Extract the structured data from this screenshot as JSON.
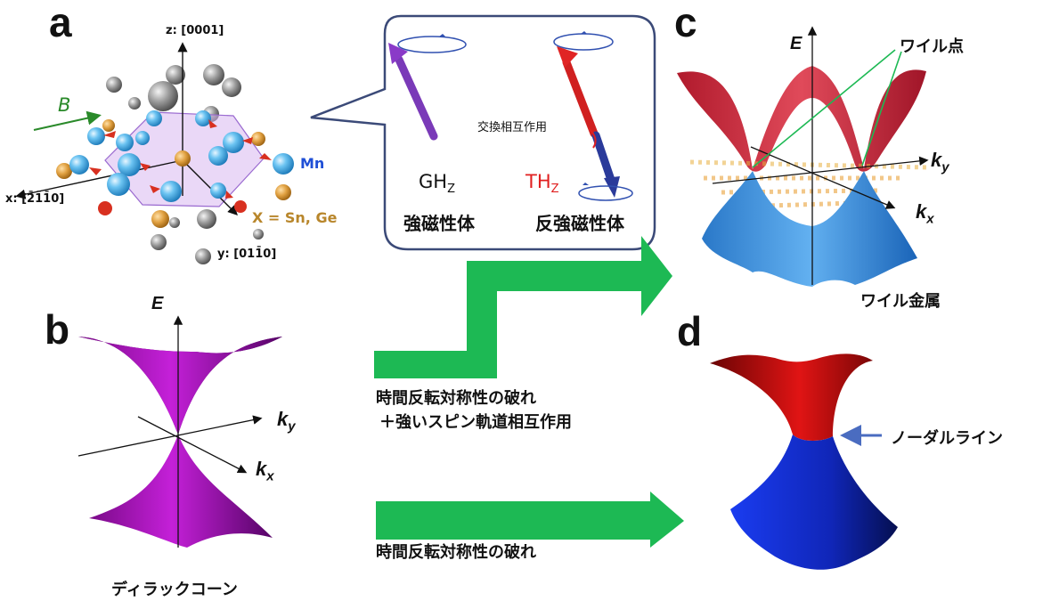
{
  "panels": {
    "a": {
      "letter": "a",
      "axes": {
        "z": "z: [0001]",
        "x": "x: [2̄1̄1̄0]",
        "y": "y: [011̄0]"
      },
      "field_label": "B",
      "mn_label": "Mn",
      "x_label": "X = Sn, Ge"
    },
    "b": {
      "letter": "b",
      "e_label": "E",
      "ky_label": "k",
      "ky_sub": "y",
      "kx_label": "k",
      "kx_sub": "x",
      "caption": "ディラックコーン"
    },
    "c": {
      "letter": "c",
      "e_label": "E",
      "ky_label": "k",
      "ky_sub": "y",
      "kx_label": "k",
      "kx_sub": "x",
      "weyl_points_label": "ワイル点",
      "caption": "ワイル金属"
    },
    "d": {
      "letter": "d",
      "nodal_line_label": "ノーダルライン"
    }
  },
  "callout": {
    "exchange_label": "交換相互作用",
    "gh_main": "GH",
    "gh_sub": "Z",
    "th_main": "TH",
    "th_sub": "Z",
    "ferromagnet": "強磁性体",
    "antiferromagnet": "反強磁性体"
  },
  "arrows": {
    "upper_line1": "時間反転対称性の破れ",
    "upper_line2": "＋強いスピン軌道相互作用",
    "lower": "時間反転対称性の破れ"
  },
  "colors": {
    "green_arrow": "#1db954",
    "dirac_purple": "#a60fb8",
    "weyl_red": "#d22a3c",
    "weyl_blue": "#3f93e0",
    "nodal_red": "#d81010",
    "nodal_blue": "#1838d8",
    "callout_border": "#3b4a78",
    "mn_blue": "#1f4fd6",
    "x_orange": "#b8862b",
    "b_green": "#2a8a2a",
    "th_red": "#e02020"
  }
}
